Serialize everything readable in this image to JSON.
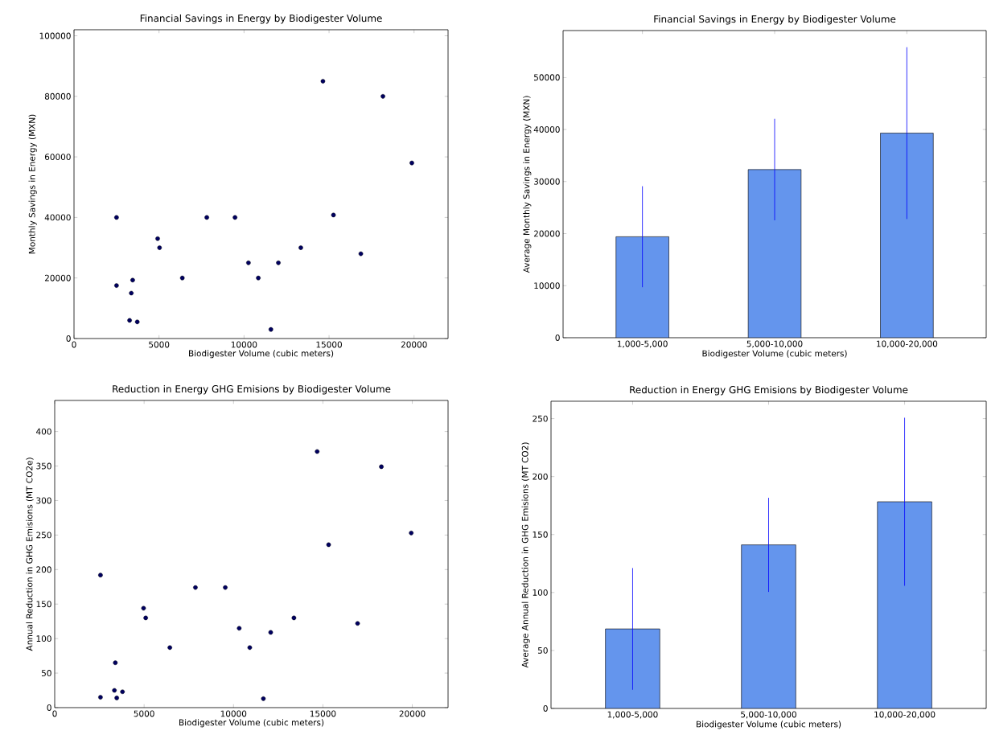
{
  "chart_data": [
    {
      "type": "scatter",
      "title": "Financial Savings in Energy by Biodigester Volume",
      "xlabel": "Biodigester Volume (cubic meters)",
      "ylabel": "Monthly Savings in Energy (MXN)",
      "color": "#000060",
      "marker": "circle",
      "x": [
        2500,
        2500,
        3450,
        3370,
        3270,
        3720,
        4920,
        5030,
        6370,
        7810,
        9470,
        10260,
        10840,
        11580,
        12020,
        13340,
        14640,
        15260,
        16870,
        18170,
        19870
      ],
      "values": [
        40000,
        17500,
        19300,
        15000,
        6000,
        5500,
        33000,
        30000,
        20000,
        40000,
        40000,
        25000,
        20000,
        3000,
        25000,
        30000,
        85000,
        40800,
        28000,
        80000,
        58000
      ],
      "xlim": [
        0,
        22000
      ],
      "ylim": [
        0,
        102000
      ],
      "xticks": [
        0,
        5000,
        10000,
        15000,
        20000
      ],
      "yticks": [
        0,
        20000,
        40000,
        60000,
        80000,
        100000
      ]
    },
    {
      "type": "bar",
      "title": "Financial Savings in Energy by Biodigester Volume",
      "xlabel": "Biodigester Volume (cubic meters)",
      "ylabel": "Average Monthly Savings in Energy (MXN)",
      "color": "#6495ed",
      "categories": [
        "1,000-5,000",
        "5,000-10,000",
        "10,000-20,000"
      ],
      "values": [
        19400,
        32300,
        39300
      ],
      "errors": [
        9700,
        9750,
        16500
      ],
      "ylim": [
        0,
        59000
      ],
      "yticks": [
        0,
        10000,
        20000,
        30000,
        40000,
        50000
      ]
    },
    {
      "type": "scatter",
      "title": "Reduction in Energy GHG Emisions by Biodigester Volume",
      "xlabel": "Biodigester Volume (cubic meters)",
      "ylabel": "Annual Reduction in GHG Emisions (MT CO2e)",
      "color": "#000060",
      "marker": "circle",
      "x": [
        2560,
        2560,
        3390,
        3340,
        3470,
        3790,
        4970,
        5090,
        6440,
        7870,
        9540,
        10320,
        10910,
        11670,
        12080,
        13380,
        14680,
        15320,
        16940,
        18270,
        19940
      ],
      "values": [
        192,
        15,
        65,
        25,
        14,
        23,
        144,
        130,
        87,
        174,
        174,
        115,
        87,
        13,
        109,
        130,
        371,
        236,
        122,
        349,
        253
      ],
      "xlim": [
        0,
        22000
      ],
      "ylim": [
        0,
        445
      ],
      "xticks": [
        0,
        5000,
        10000,
        15000,
        20000
      ],
      "yticks": [
        0,
        50,
        100,
        150,
        200,
        250,
        300,
        350,
        400
      ]
    },
    {
      "type": "bar",
      "title": "Reduction in Energy GHG Emisions by Biodigester Volume",
      "xlabel": "Biodigester Volume (cubic meters)",
      "ylabel": "Average Annual Reduction in GHG Emisions (MT CO2)",
      "color": "#6495ed",
      "categories": [
        "1,000-5,000",
        "5,000-10,000",
        "10,000-20,000"
      ],
      "values": [
        68.6,
        141.1,
        178.3
      ],
      "errors": [
        52.5,
        40.6,
        72.5
      ],
      "ylim": [
        0,
        265
      ],
      "yticks": [
        0,
        50,
        100,
        150,
        200,
        250
      ]
    }
  ]
}
